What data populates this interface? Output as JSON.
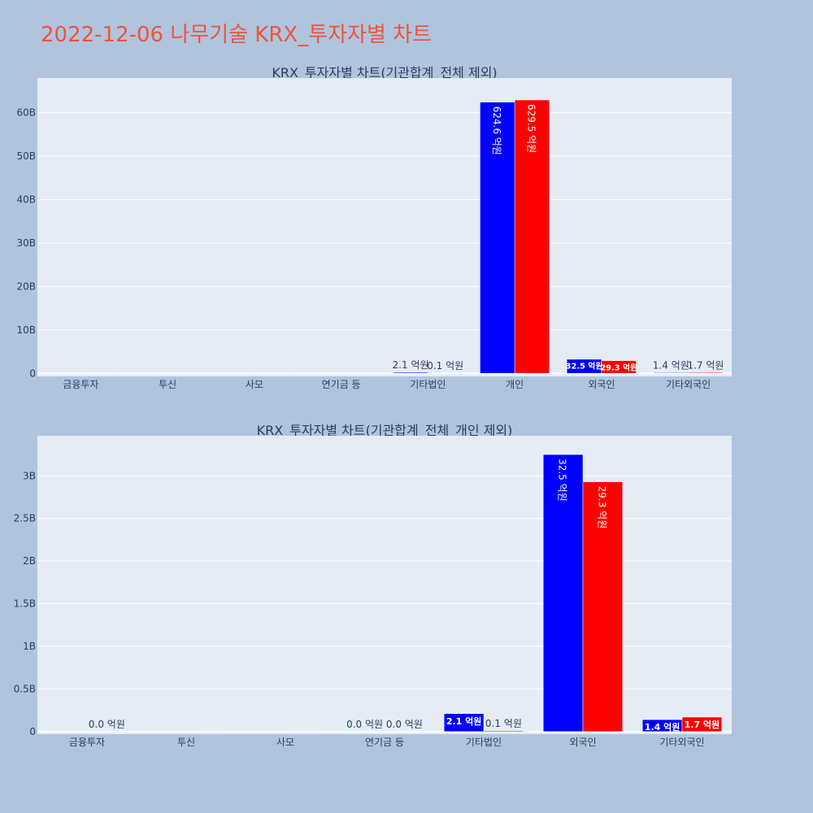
{
  "page": {
    "title": "2022-12-06 나무기술 KRX_투자자별 차트"
  },
  "colors": {
    "background": "#b0c4de",
    "plot_bg": "#e5ecf6",
    "title": "#ef553b",
    "text": "#2a3f5f",
    "gridline": "#ffffff"
  },
  "chart_data": [
    {
      "type": "bar",
      "title": "KRX_투자자별 차트(기관합계_전체 제외)",
      "categories": [
        "금융투자",
        "투신",
        "사모",
        "연기금 등",
        "기타법인",
        "개인",
        "외국인",
        "기타외국인"
      ],
      "series": [
        {
          "color": "#0000ff",
          "values": [
            0,
            0,
            0,
            0,
            210000000,
            62460000000,
            3250000000,
            140000000
          ],
          "labels": [
            "",
            "",
            "",
            "",
            "2.1 억원",
            "624.6 억원",
            "32.5 억원",
            "1.4 억원"
          ]
        },
        {
          "color": "#ff0000",
          "values": [
            0,
            0,
            0,
            0,
            10000000,
            62950000000,
            2930000000,
            170000000
          ],
          "labels": [
            "",
            "",
            "",
            "",
            "0.1 억원",
            "629.5 억원",
            "29.3 억원",
            "1.7 억원"
          ]
        }
      ],
      "ylim": [
        -700000000,
        68000000000
      ],
      "yticks": [
        0,
        10000000000,
        20000000000,
        30000000000,
        40000000000,
        50000000000,
        60000000000
      ],
      "ytick_labels": [
        "0",
        "10B",
        "20B",
        "30B",
        "40B",
        "50B",
        "60B"
      ],
      "grid": true
    },
    {
      "type": "bar",
      "title": "KRX_투자자별 차트(기관합계_전체_개인 제외)",
      "categories": [
        "금융투자",
        "투신",
        "사모",
        "연기금 등",
        "기타법인",
        "외국인",
        "기타외국인"
      ],
      "series": [
        {
          "color": "#0000ff",
          "values": [
            0,
            0,
            0,
            0,
            210000000,
            3250000000,
            140000000
          ],
          "labels": [
            "",
            "",
            "",
            "0.0 억원",
            "2.1 억원",
            "32.5 억원",
            "1.4 억원"
          ]
        },
        {
          "color": "#ff0000",
          "values": [
            0,
            0,
            0,
            0,
            10000000,
            2930000000,
            170000000
          ],
          "labels": [
            "0.0 억원",
            "",
            "",
            "0.0 억원",
            "0.1 억원",
            "29.3 억원",
            "1.7 억원"
          ]
        }
      ],
      "ylim": [
        -30000000,
        3470000000
      ],
      "yticks": [
        0,
        500000000,
        1000000000,
        1500000000,
        2000000000,
        2500000000,
        3000000000
      ],
      "ytick_labels": [
        "0",
        "0.5B",
        "1B",
        "1.5B",
        "2B",
        "2.5B",
        "3B"
      ],
      "grid": true
    }
  ]
}
